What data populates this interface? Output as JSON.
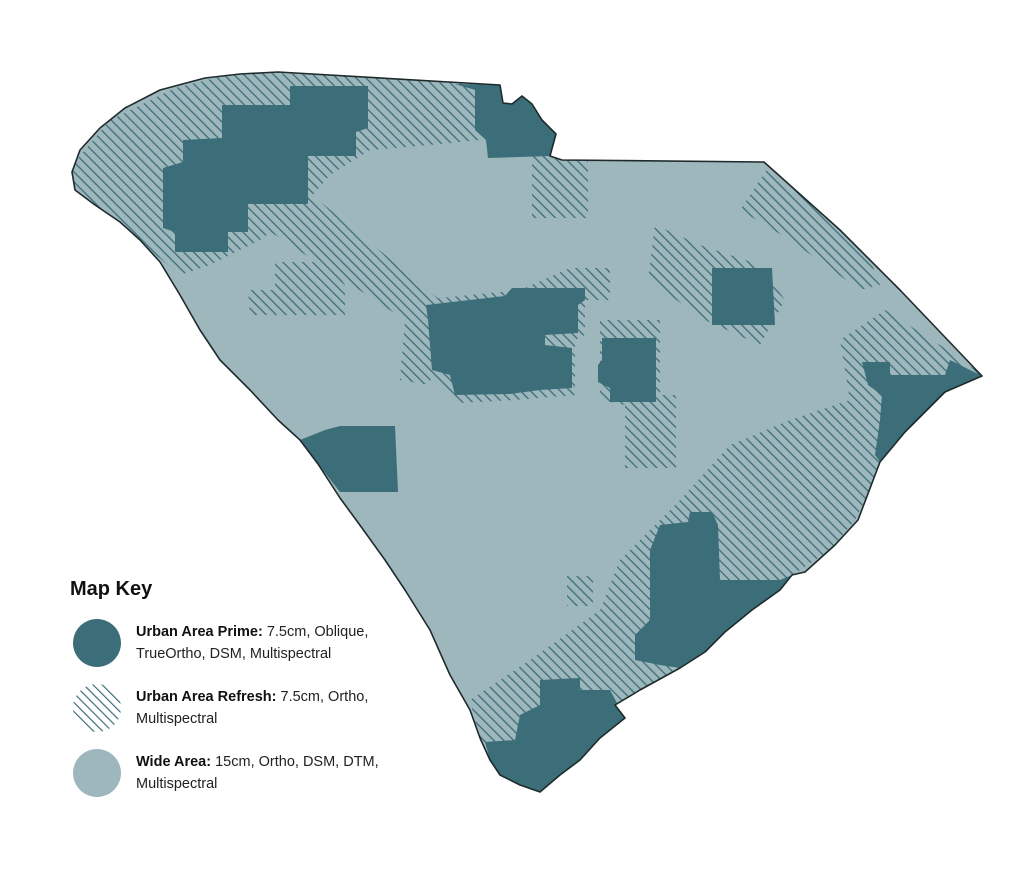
{
  "legend": {
    "title": "Map Key",
    "items": [
      {
        "key": "urban-prime",
        "name": "Urban Area Prime:",
        "desc": "7.5cm, Oblique, TrueOrtho, DSM, Multispectral",
        "color": "#3b6e78",
        "style": "solid"
      },
      {
        "key": "urban-refresh",
        "name": "Urban Area Refresh:",
        "desc": "7.5cm, Ortho, Multispectral",
        "color": "#3b6e78",
        "style": "hatched"
      },
      {
        "key": "wide-area",
        "name": "Wide Area:",
        "desc": "15cm, Ortho, DSM, DTM, Multispectral",
        "color": "#9eb7bc",
        "style": "solid"
      }
    ]
  },
  "colors": {
    "prime": "#3b6e78",
    "wide": "#9eb7bc",
    "outline": "#1f2a2c",
    "background": "#ffffff"
  }
}
